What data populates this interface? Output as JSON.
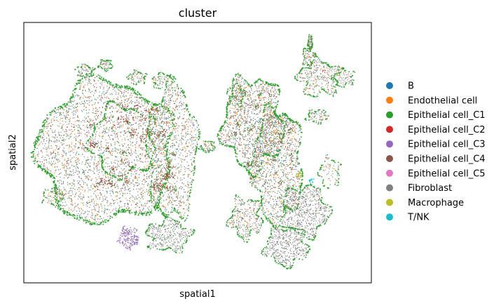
{
  "chart_data": {
    "type": "scatter",
    "title": "cluster",
    "xlabel": "spatial1",
    "ylabel": "spatial2",
    "grid": false,
    "ticks": false,
    "legend_position": "right",
    "series": [
      {
        "name": "B",
        "color": "#1f77b4"
      },
      {
        "name": "Endothelial cell",
        "color": "#ff7f0e"
      },
      {
        "name": "Epithelial cell_C1",
        "color": "#2ca02c"
      },
      {
        "name": "Epithelial cell_C2",
        "color": "#d62728"
      },
      {
        "name": "Epithelial cell_C3",
        "color": "#9467bd"
      },
      {
        "name": "Epithelial cell_C4",
        "color": "#8c564b"
      },
      {
        "name": "Epithelial cell_C5",
        "color": "#e377c2"
      },
      {
        "name": "Fibroblast",
        "color": "#7f7f7f"
      },
      {
        "name": "Macrophage",
        "color": "#bcbd22"
      },
      {
        "name": "T/NK",
        "color": "#17becf"
      }
    ]
  }
}
